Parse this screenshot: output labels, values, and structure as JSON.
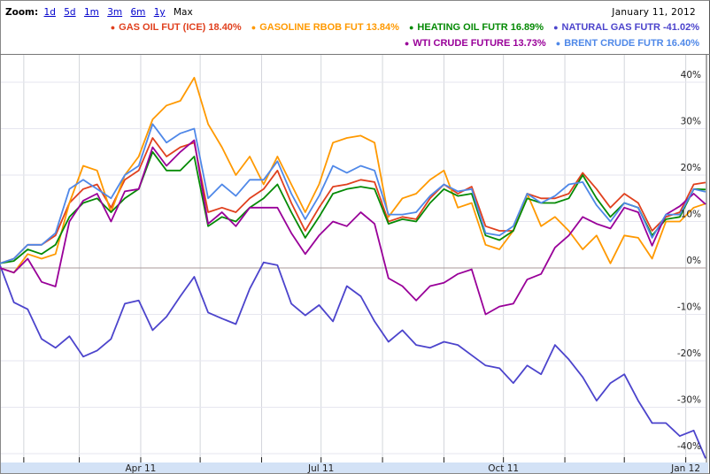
{
  "header": {
    "zoom_label": "Zoom:",
    "zoom_options": [
      "1d",
      "5d",
      "1m",
      "3m",
      "6m",
      "1y",
      "Max"
    ],
    "zoom_selected": "Max",
    "date": "January 11, 2012"
  },
  "legend": [
    {
      "label": "GAS OIL FUT (ICE) 18.40%",
      "color": "#e0401e"
    },
    {
      "label": "GASOLINE RBOB FUT 13.84%",
      "color": "#ff9900"
    },
    {
      "label": "HEATING OIL FUTR 16.89%",
      "color": "#058a05"
    },
    {
      "label": "NATURAL GAS FUTR -41.02%",
      "color": "#4c44cc"
    },
    {
      "label": "WTI CRUDE FUTURE 13.73%",
      "color": "#990099"
    },
    {
      "label": "BRENT CRUDE FUTR 16.40%",
      "color": "#4f88e8"
    }
  ],
  "chart_data": {
    "type": "line",
    "title": "",
    "xlabel": "",
    "ylabel": "",
    "ylim": [
      -42,
      45
    ],
    "yticks": [
      40,
      30,
      20,
      10,
      0,
      -10,
      -20,
      -30,
      -40
    ],
    "ytick_labels": [
      "40%",
      "30%",
      "20%",
      "10%",
      "0%",
      "-10%",
      "-20%",
      "-30%",
      "-40%"
    ],
    "xlim": [
      "2011-01-20",
      "2012-01-11"
    ],
    "xtick_labels": [
      {
        "date": "2011-04-01",
        "label": "Apr 11"
      },
      {
        "date": "2011-07-01",
        "label": "Jul 11"
      },
      {
        "date": "2011-10-01",
        "label": "Oct 11"
      },
      {
        "date": "2012-01-01",
        "label": "Jan 12"
      }
    ],
    "month_gridlines": [
      "2011-02-01",
      "2011-03-01",
      "2011-04-01",
      "2011-05-01",
      "2011-06-01",
      "2011-07-01",
      "2011-08-01",
      "2011-09-01",
      "2011-10-01",
      "2011-11-01",
      "2011-12-01",
      "2012-01-01"
    ],
    "grid": true,
    "legend_position": "top",
    "x": [
      "2011-01-20",
      "2011-01-27",
      "2011-02-03",
      "2011-02-10",
      "2011-02-17",
      "2011-02-24",
      "2011-03-03",
      "2011-03-10",
      "2011-03-17",
      "2011-03-24",
      "2011-03-31",
      "2011-04-07",
      "2011-04-14",
      "2011-04-21",
      "2011-04-28",
      "2011-05-05",
      "2011-05-12",
      "2011-05-19",
      "2011-05-26",
      "2011-06-02",
      "2011-06-09",
      "2011-06-16",
      "2011-06-23",
      "2011-06-30",
      "2011-07-07",
      "2011-07-14",
      "2011-07-21",
      "2011-07-28",
      "2011-08-04",
      "2011-08-11",
      "2011-08-18",
      "2011-08-25",
      "2011-09-01",
      "2011-09-08",
      "2011-09-15",
      "2011-09-22",
      "2011-09-29",
      "2011-10-06",
      "2011-10-13",
      "2011-10-20",
      "2011-10-27",
      "2011-11-03",
      "2011-11-10",
      "2011-11-17",
      "2011-11-24",
      "2011-12-01",
      "2011-12-08",
      "2011-12-15",
      "2011-12-22",
      "2011-12-29",
      "2012-01-05",
      "2012-01-11"
    ],
    "series": [
      {
        "name": "GAS OIL FUT (ICE)",
        "color": "#e0401e",
        "values": [
          1,
          2,
          5,
          5,
          7,
          14,
          17,
          18,
          13,
          19,
          21,
          28,
          24,
          26,
          27,
          12,
          13,
          12,
          15,
          17,
          21,
          14,
          8,
          13,
          17.5,
          18,
          19,
          18.5,
          10,
          11,
          10.5,
          15,
          18,
          16,
          17.5,
          9,
          8,
          8,
          16,
          15,
          15,
          16,
          20.5,
          17,
          13,
          16,
          14,
          8,
          11,
          12,
          18,
          18.4
        ]
      },
      {
        "name": "GASOLINE RBOB FUT",
        "color": "#ff9900",
        "values": [
          0,
          -1,
          3,
          2,
          3,
          14,
          22,
          21,
          12,
          20,
          24,
          32,
          35,
          36,
          41,
          31,
          26,
          20,
          24,
          18,
          24,
          18,
          12,
          18,
          27,
          28,
          28.5,
          27,
          11,
          15,
          16,
          19,
          21,
          13,
          14,
          5,
          4,
          8,
          16,
          9,
          11,
          8,
          4,
          7,
          1,
          7,
          6.5,
          2,
          10,
          10,
          13,
          13.84
        ]
      },
      {
        "name": "HEATING OIL FUTR",
        "color": "#058a05",
        "values": [
          1,
          1.5,
          4,
          3,
          5,
          11,
          14,
          15,
          12,
          15,
          17,
          25,
          21,
          21,
          24,
          9,
          11,
          10,
          13,
          15,
          18,
          12,
          6.5,
          11,
          16,
          17,
          17.5,
          17,
          9.5,
          10.5,
          10,
          14,
          17,
          15.5,
          16,
          7,
          6,
          8,
          15,
          14,
          14,
          15,
          20,
          15,
          11,
          14,
          13,
          7,
          10.5,
          11,
          17,
          16.89
        ]
      },
      {
        "name": "NATURAL GAS FUTR",
        "color": "#4c44cc",
        "values": [
          0.6,
          -7.4,
          -8.9,
          -15.3,
          -17.2,
          -14.7,
          -19.1,
          -17.8,
          -15.3,
          -7.7,
          -7,
          -13.4,
          -10.5,
          -6.1,
          -1.9,
          -9.6,
          -10.9,
          -12.1,
          -4.5,
          1.2,
          0.6,
          -7.7,
          -10.2,
          -8,
          -11.5,
          -3.9,
          -6.1,
          -11.5,
          -15.9,
          -13.4,
          -16.6,
          -17.2,
          -15.9,
          -16.6,
          -18.8,
          -21,
          -21.6,
          -24.8,
          -21,
          -22.9,
          -16.6,
          -19.7,
          -23.5,
          -28.6,
          -24.8,
          -22.9,
          -28.6,
          -33.4,
          -33.4,
          -36.2,
          -35,
          -41.02
        ]
      },
      {
        "name": "WTI CRUDE FUTURE",
        "color": "#990099",
        "values": [
          0,
          -1,
          2,
          -3,
          -4,
          10,
          14.5,
          16,
          10,
          16.5,
          17,
          26,
          22,
          25,
          27.5,
          9.5,
          12,
          9,
          13,
          13,
          13,
          7.5,
          3,
          7,
          10,
          9,
          12,
          9.5,
          -2.2,
          -3.9,
          -7,
          -3.9,
          -3.2,
          -1.3,
          -0.3,
          -10,
          -8.3,
          -7.7,
          -2.5,
          -1.3,
          4.4,
          7,
          11,
          9.5,
          8.5,
          13,
          12,
          4.8,
          11.5,
          13.3,
          16,
          13.73
        ]
      },
      {
        "name": "BRENT CRUDE FUTR",
        "color": "#4f88e8",
        "values": [
          1,
          2,
          5,
          5,
          7.5,
          17,
          19,
          17,
          15,
          20,
          22,
          31,
          27,
          29,
          30,
          15,
          18,
          15.5,
          19,
          19,
          23,
          16,
          10.5,
          15.5,
          22,
          20.5,
          22,
          21,
          11.5,
          11.5,
          12,
          15.5,
          18,
          16.5,
          17,
          7.5,
          7,
          9,
          16,
          14,
          15.5,
          18,
          18.5,
          13.5,
          10,
          14,
          13,
          6.5,
          11.5,
          11.5,
          17,
          16.4
        ]
      }
    ]
  }
}
